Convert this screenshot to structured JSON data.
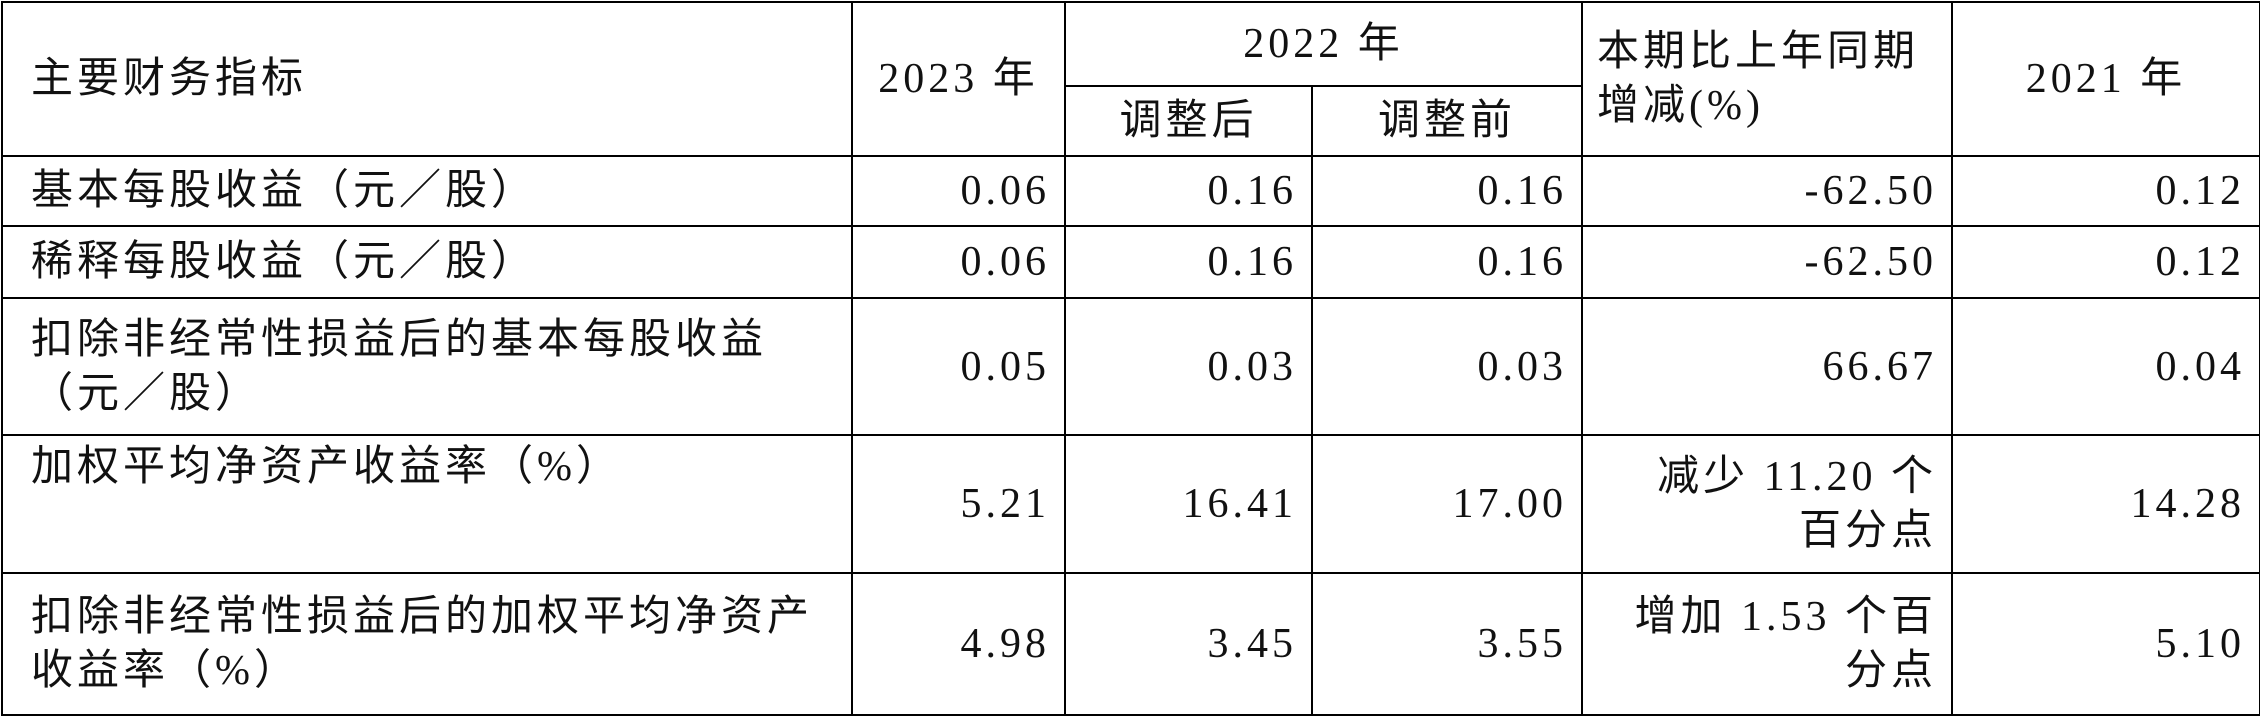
{
  "table": {
    "header": {
      "indicator": "主要财务指标",
      "y2023": "2023 年",
      "y2022": "2022 年",
      "adjusted_after": "调整后",
      "adjusted_before": "调整前",
      "change": "本期比上年同期增减(%)",
      "y2021": "2021 年"
    },
    "rows": [
      [
        "基本每股收益（元／股）",
        "0.06",
        "0.16",
        "0.16",
        "-62.50",
        "0.12"
      ],
      [
        "稀释每股收益（元／股）",
        "0.06",
        "0.16",
        "0.16",
        "-62.50",
        "0.12"
      ],
      [
        "扣除非经常性损益后的基本每股收益（元／股）",
        "0.05",
        "0.03",
        "0.03",
        "66.67",
        "0.04"
      ],
      [
        "加权平均净资产收益率（%）",
        "5.21",
        "16.41",
        "17.00",
        "减少 11.20 个百分点",
        "14.28"
      ],
      [
        "扣除非经常性损益后的加权平均净资产收益率（%）",
        "4.98",
        "3.45",
        "3.55",
        "增加 1.53 个百分点",
        "5.10"
      ]
    ]
  }
}
